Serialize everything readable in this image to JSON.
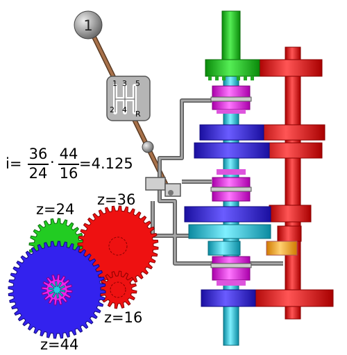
{
  "gear_shift": {
    "selected_gear_badge": "1",
    "pattern_labels": [
      "1",
      "3",
      "5",
      "2",
      "4",
      "R"
    ]
  },
  "ratio_formula": {
    "prefix": "i=",
    "fraction_1": {
      "numerator": "36",
      "denominator": "24"
    },
    "operator": "·",
    "fraction_2": {
      "numerator": "44",
      "denominator": "16"
    },
    "result": "=4.125"
  },
  "gear_labels": {
    "z24": "z=24",
    "z36": "z=36",
    "z16": "z=16",
    "z44": "z=44"
  },
  "colors": {
    "green": "#22cc22",
    "red": "#ee1111",
    "blue": "#3322ee",
    "magenta": "#ee22ee",
    "cyan": "#22cce0",
    "orange": "#ffaa33",
    "grey": "#888888",
    "brown": "#8b5a3c"
  }
}
